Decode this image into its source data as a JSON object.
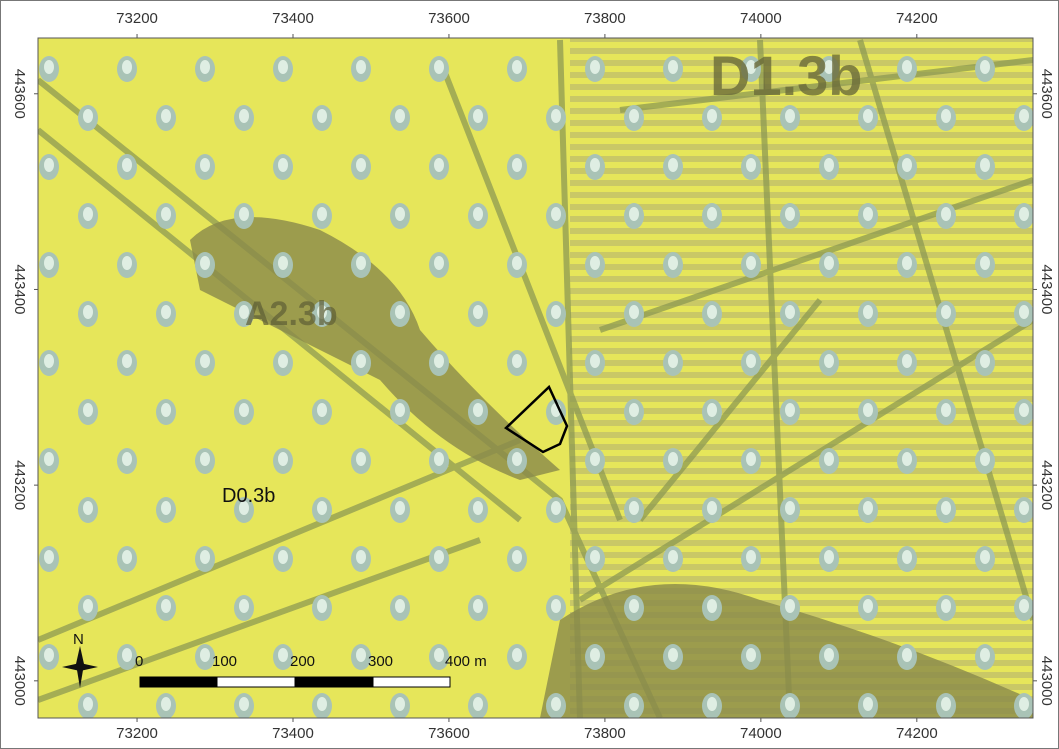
{
  "map": {
    "xlim": [
      73073,
      74349
    ],
    "ylim": [
      442962,
      443657
    ],
    "xticks": [
      73200,
      73400,
      73600,
      73800,
      74000,
      74200
    ],
    "yticks": [
      443000,
      443200,
      443400,
      443600
    ],
    "unit_label": "D0.3b",
    "raster_labels": [
      "D1.3b",
      "A2.3b"
    ],
    "north_label": "N",
    "scale_bar": {
      "labels": [
        "0",
        "100",
        "200",
        "300",
        "400 m"
      ]
    }
  }
}
